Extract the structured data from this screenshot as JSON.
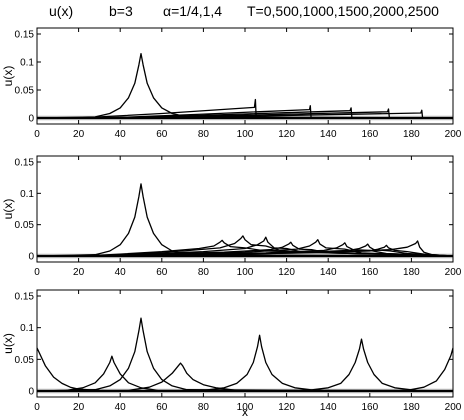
{
  "header": {
    "u_label": "u(x)",
    "b_label": "b=3",
    "alpha_label": "α=1/4,1,4",
    "T_label": "T=0,500,1000,1500,2000,2500"
  },
  "chart_data": [
    {
      "type": "line",
      "panel": "top",
      "ylabel": "u(x)",
      "xlabel": "",
      "xlim": [
        0,
        200
      ],
      "ylim": [
        0,
        0.15
      ],
      "xticks": [
        "0",
        "20",
        "40",
        "60",
        "80",
        "100",
        "120",
        "140",
        "160",
        "180",
        "200"
      ],
      "yticks": [
        "0",
        "0.05",
        "0.1",
        "0.15"
      ],
      "series": [
        {
          "x": [
            0,
            28,
            35,
            40,
            44,
            47,
            49,
            50,
            51,
            53,
            56,
            60,
            65,
            72,
            200
          ],
          "y": [
            0,
            0.002,
            0.008,
            0.018,
            0.036,
            0.062,
            0.095,
            0.115,
            0.095,
            0.062,
            0.036,
            0.018,
            0.008,
            0.002,
            0
          ]
        },
        {
          "x": [
            0,
            20,
            30,
            60,
            104.5,
            105,
            105.4,
            200
          ],
          "y": [
            0,
            0,
            0.002,
            0.008,
            0.019,
            0.033,
            0,
            0
          ]
        },
        {
          "x": [
            0,
            22,
            40,
            80,
            131,
            131.4,
            131.8,
            200
          ],
          "y": [
            0,
            0,
            0.001,
            0.007,
            0.015,
            0.022,
            0,
            0
          ]
        },
        {
          "x": [
            0,
            24,
            45,
            90,
            150.5,
            151,
            151.4,
            200
          ],
          "y": [
            0,
            0,
            0.001,
            0.006,
            0.013,
            0.018,
            0,
            0
          ]
        },
        {
          "x": [
            0,
            26,
            50,
            100,
            168.5,
            169,
            169.4,
            200
          ],
          "y": [
            0,
            0,
            0.001,
            0.005,
            0.011,
            0.016,
            0,
            0
          ]
        },
        {
          "x": [
            0,
            28,
            55,
            110,
            184.5,
            185,
            185.4,
            200
          ],
          "y": [
            0,
            0,
            0.001,
            0.004,
            0.009,
            0.014,
            0,
            0
          ]
        }
      ]
    },
    {
      "type": "line",
      "panel": "middle",
      "ylabel": "u(x)",
      "xlabel": "",
      "xlim": [
        0,
        200
      ],
      "ylim": [
        0,
        0.15
      ],
      "xticks": [
        "0",
        "20",
        "40",
        "60",
        "80",
        "100",
        "120",
        "140",
        "160",
        "180",
        "200"
      ],
      "yticks": [
        "0",
        "0.05",
        "0.1",
        "0.15"
      ],
      "series": [
        {
          "x": [
            0,
            28,
            35,
            40,
            44,
            47,
            49,
            50,
            51,
            53,
            56,
            60,
            65,
            72,
            200
          ],
          "y": [
            0,
            0.002,
            0.008,
            0.018,
            0.036,
            0.062,
            0.095,
            0.115,
            0.095,
            0.062,
            0.036,
            0.018,
            0.008,
            0.002,
            0
          ]
        },
        {
          "x": [
            0,
            22,
            40,
            60,
            78,
            85,
            88,
            89,
            90,
            93,
            100,
            110,
            200
          ],
          "y": [
            0,
            0,
            0.003,
            0.007,
            0.012,
            0.016,
            0.022,
            0.025,
            0.021,
            0.015,
            0.013,
            0.008,
            0
          ]
        },
        {
          "x": [
            0,
            24,
            45,
            70,
            88,
            95,
            98,
            99,
            100,
            103,
            110,
            118,
            200
          ],
          "y": [
            0,
            0,
            0.003,
            0.008,
            0.013,
            0.02,
            0.028,
            0.032,
            0.026,
            0.018,
            0.016,
            0.008,
            0
          ]
        },
        {
          "x": [
            0,
            26,
            50,
            80,
            100,
            106,
            109,
            110,
            111,
            114,
            120,
            128,
            200
          ],
          "y": [
            0,
            0,
            0.003,
            0.007,
            0.012,
            0.018,
            0.024,
            0.03,
            0.022,
            0.013,
            0.012,
            0.006,
            0
          ]
        },
        {
          "x": [
            0,
            28,
            55,
            90,
            112,
            118,
            121,
            122,
            123,
            126,
            132,
            140,
            200
          ],
          "y": [
            0,
            0,
            0.003,
            0.006,
            0.01,
            0.014,
            0.019,
            0.022,
            0.017,
            0.011,
            0.01,
            0.005,
            0
          ]
        },
        {
          "x": [
            0,
            30,
            60,
            100,
            125,
            131,
            134,
            135,
            136,
            139,
            148,
            156,
            200
          ],
          "y": [
            0,
            0,
            0.002,
            0.006,
            0.011,
            0.016,
            0.022,
            0.026,
            0.019,
            0.013,
            0.011,
            0.005,
            0
          ]
        },
        {
          "x": [
            0,
            32,
            65,
            110,
            138,
            144,
            147,
            148,
            149,
            152,
            160,
            168,
            200
          ],
          "y": [
            0,
            0,
            0.002,
            0.005,
            0.009,
            0.013,
            0.018,
            0.021,
            0.015,
            0.01,
            0.009,
            0.004,
            0
          ]
        },
        {
          "x": [
            0,
            34,
            70,
            120,
            150,
            155,
            158,
            159,
            160,
            162,
            170,
            178,
            200
          ],
          "y": [
            0,
            0,
            0.002,
            0.005,
            0.009,
            0.012,
            0.016,
            0.019,
            0.014,
            0.01,
            0.008,
            0.004,
            0
          ]
        },
        {
          "x": [
            0,
            36,
            75,
            130,
            160,
            164,
            167,
            168,
            169,
            172,
            178,
            186,
            200
          ],
          "y": [
            0,
            0,
            0.002,
            0.005,
            0.008,
            0.011,
            0.014,
            0.017,
            0.013,
            0.009,
            0.007,
            0.003,
            0
          ]
        },
        {
          "x": [
            0,
            40,
            80,
            140,
            170,
            178,
            182,
            183,
            184,
            186,
            190,
            200
          ],
          "y": [
            0,
            0,
            0.002,
            0.006,
            0.01,
            0.014,
            0.02,
            0.024,
            0.014,
            0.006,
            0.002,
            0
          ]
        }
      ]
    },
    {
      "type": "line",
      "panel": "bottom",
      "ylabel": "u(x)",
      "xlabel": "x",
      "xlim": [
        0,
        200
      ],
      "ylim": [
        0,
        0.15
      ],
      "xticks": [
        "0",
        "20",
        "40",
        "60",
        "80",
        "100",
        "120",
        "140",
        "160",
        "180",
        "200"
      ],
      "yticks": [
        "0",
        "0.05",
        "0.1",
        "0.15"
      ],
      "series": [
        {
          "x": [
            0,
            28,
            35,
            40,
            44,
            47,
            49,
            50,
            51,
            53,
            56,
            60,
            65,
            72,
            200
          ],
          "y": [
            0,
            0.002,
            0.008,
            0.018,
            0.036,
            0.062,
            0.095,
            0.115,
            0.095,
            0.062,
            0.036,
            0.018,
            0.008,
            0.002,
            0
          ]
        },
        {
          "x": [
            0,
            4,
            8,
            12,
            16,
            20,
            30,
            40,
            200
          ],
          "y": [
            0.068,
            0.04,
            0.022,
            0.012,
            0.006,
            0.003,
            0.001,
            0,
            0
          ]
        },
        {
          "x": [
            0,
            14,
            22,
            28,
            32,
            35,
            36,
            37,
            40,
            44,
            50,
            58,
            200
          ],
          "y": [
            0,
            0.001,
            0.005,
            0.013,
            0.027,
            0.045,
            0.055,
            0.045,
            0.027,
            0.013,
            0.005,
            0.001,
            0
          ]
        },
        {
          "x": [
            0,
            44,
            54,
            60,
            65,
            68,
            69,
            70,
            72,
            75,
            80,
            86,
            96,
            200
          ],
          "y": [
            0,
            0.001,
            0.006,
            0.014,
            0.028,
            0.04,
            0.044,
            0.04,
            0.028,
            0.018,
            0.01,
            0.005,
            0.001,
            0
          ]
        },
        {
          "x": [
            0,
            80,
            90,
            96,
            101,
            104,
            106,
            107,
            108,
            110,
            113,
            118,
            124,
            134,
            200
          ],
          "y": [
            0,
            0.001,
            0.005,
            0.012,
            0.026,
            0.045,
            0.07,
            0.088,
            0.07,
            0.045,
            0.026,
            0.012,
            0.005,
            0.001,
            0
          ]
        },
        {
          "x": [
            0,
            130,
            140,
            146,
            150,
            153,
            155,
            156,
            157,
            159,
            162,
            166,
            172,
            182,
            200
          ],
          "y": [
            0,
            0.001,
            0.005,
            0.012,
            0.026,
            0.045,
            0.066,
            0.082,
            0.066,
            0.045,
            0.026,
            0.012,
            0.005,
            0.001,
            0
          ]
        },
        {
          "x": [
            0,
            178,
            186,
            192,
            196,
            199,
            200
          ],
          "y": [
            0,
            0.001,
            0.006,
            0.016,
            0.034,
            0.056,
            0.068
          ]
        }
      ]
    }
  ]
}
